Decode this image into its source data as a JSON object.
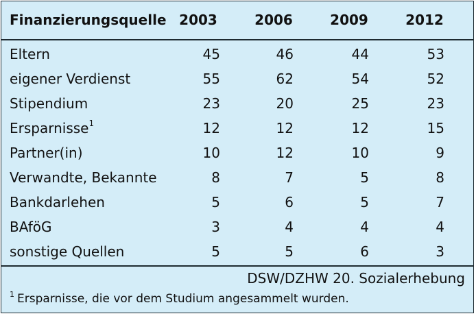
{
  "table": {
    "headers": [
      "Finanzierungsquelle",
      "2003",
      "2006",
      "2009",
      "2012"
    ],
    "rows": [
      {
        "label": "Eltern",
        "sup": "",
        "values": [
          "45",
          "46",
          "44",
          "53"
        ]
      },
      {
        "label": "eigener Verdienst",
        "sup": "",
        "values": [
          "55",
          "62",
          "54",
          "52"
        ]
      },
      {
        "label": "Stipendium",
        "sup": "",
        "values": [
          "23",
          "20",
          "25",
          "23"
        ]
      },
      {
        "label": "Ersparnisse",
        "sup": "1",
        "values": [
          "12",
          "12",
          "12",
          "15"
        ]
      },
      {
        "label": "Partner(in)",
        "sup": "",
        "values": [
          "10",
          "12",
          "10",
          "9"
        ]
      },
      {
        "label": "Verwandte, Bekannte",
        "sup": "",
        "values": [
          "8",
          "7",
          "5",
          "8"
        ]
      },
      {
        "label": "Bankdarlehen",
        "sup": "",
        "values": [
          "5",
          "6",
          "5",
          "7"
        ]
      },
      {
        "label": "BAföG",
        "sup": "",
        "values": [
          "3",
          "4",
          "4",
          "4"
        ]
      },
      {
        "label": "sonstige Quellen",
        "sup": "",
        "values": [
          "5",
          "5",
          "6",
          "3"
        ]
      }
    ]
  },
  "source": "DSW/DZHW 20. Sozialerhebung",
  "footnote": {
    "marker": "1",
    "text": "Ersparnisse, die vor dem Studium angesammelt wurden."
  },
  "colors": {
    "background": "#d4edf8",
    "border": "#1e2a30"
  }
}
